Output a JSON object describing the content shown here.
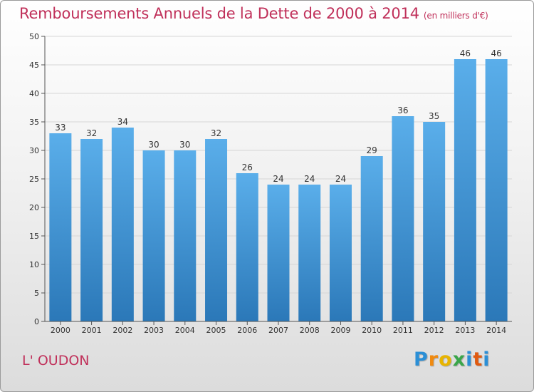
{
  "chart_data": {
    "type": "bar",
    "title": "Remboursements Annuels de la Dette de 2000 à 2014",
    "unit_note": "(en milliers d'€)",
    "categories": [
      "2000",
      "2001",
      "2002",
      "2003",
      "2004",
      "2005",
      "2006",
      "2007",
      "2008",
      "2009",
      "2010",
      "2011",
      "2012",
      "2013",
      "2014"
    ],
    "values": [
      33,
      32,
      34,
      30,
      30,
      32,
      26,
      24,
      24,
      24,
      29,
      36,
      35,
      46,
      46
    ],
    "ylim": [
      0,
      50
    ],
    "yticks": [
      0,
      5,
      10,
      15,
      20,
      25,
      30,
      35,
      40,
      45,
      50
    ],
    "bar_color_top": "#5aaeea",
    "bar_color_bottom": "#2b78b8"
  },
  "footer": {
    "commune": "L' OUDON",
    "logo": {
      "p": "P",
      "r": "r",
      "o": "o",
      "x": "x",
      "i": "i",
      "t": "t",
      "i2": "i"
    }
  }
}
